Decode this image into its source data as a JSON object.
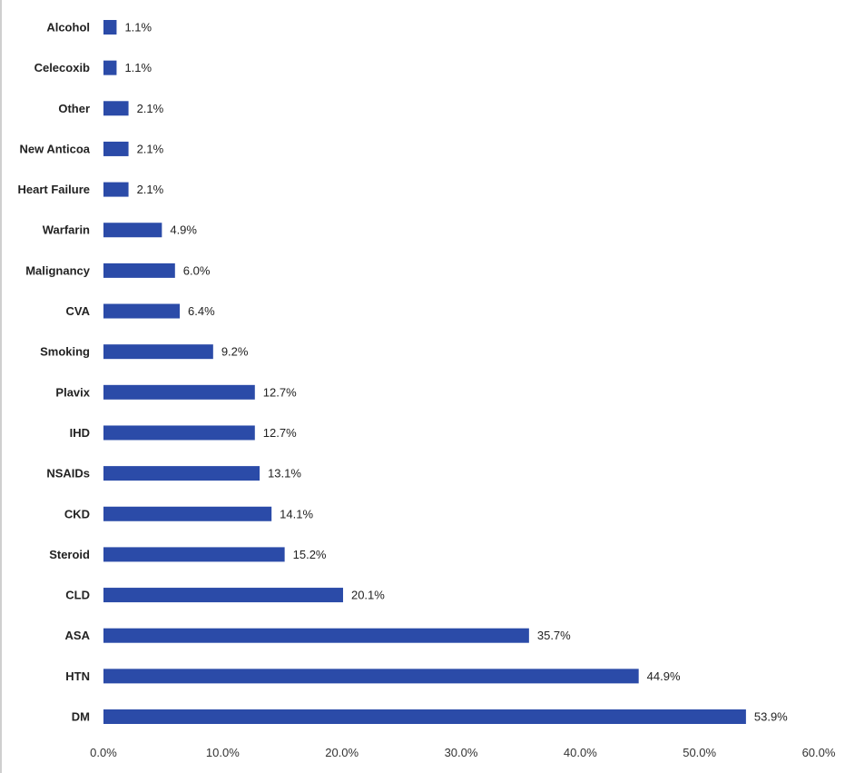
{
  "chart_data": {
    "type": "bar",
    "orientation": "horizontal",
    "categories": [
      "Alcohol",
      "Celecoxib",
      "Other",
      "New Anticoa",
      "Heart Failure",
      "Warfarin",
      "Malignancy",
      "CVA",
      "Smoking",
      "Plavix",
      "IHD",
      "NSAIDs",
      "CKD",
      "Steroid",
      "CLD",
      "ASA",
      "HTN",
      "DM"
    ],
    "values": [
      1.1,
      1.1,
      2.1,
      2.1,
      2.1,
      4.9,
      6.0,
      6.4,
      9.2,
      12.7,
      12.7,
      13.1,
      14.1,
      15.2,
      20.1,
      35.7,
      44.9,
      53.9
    ],
    "data_labels": [
      "1.1%",
      "1.1%",
      "2.1%",
      "2.1%",
      "2.1%",
      "4.9%",
      "6.0%",
      "6.4%",
      "9.2%",
      "12.7%",
      "12.7%",
      "13.1%",
      "14.1%",
      "15.2%",
      "20.1%",
      "35.7%",
      "44.9%",
      "53.9%"
    ],
    "x_ticks": [
      "0.0%",
      "10.0%",
      "20.0%",
      "30.0%",
      "40.0%",
      "50.0%",
      "60.0%"
    ],
    "xlim": [
      0,
      60
    ],
    "title": "",
    "xlabel": "",
    "ylabel": "",
    "grid": false,
    "legend": "none",
    "bar_color": "#2b4ba8"
  }
}
